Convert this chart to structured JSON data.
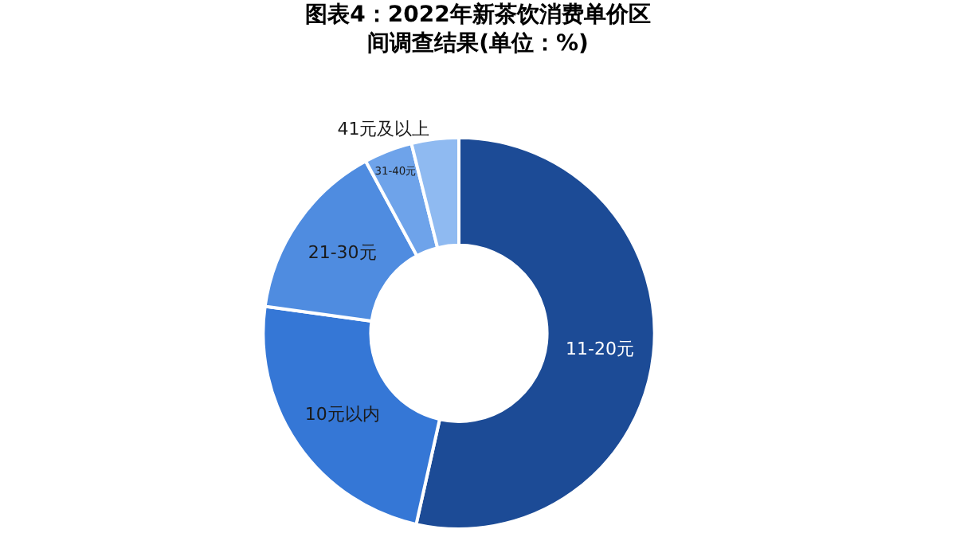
{
  "chart_data": {
    "type": "donut",
    "title": "图表4：2022年新茶饮消费单价区间调查结果(单位：%)",
    "categories": [
      "11-20元",
      "10元以内",
      "21-30元",
      "31-40元",
      "41元及以上"
    ],
    "values": [
      53.5,
      23.7,
      14.9,
      4.0,
      3.9
    ],
    "colors": [
      "#1c4b96",
      "#3577d6",
      "#4f8ce0",
      "#6ea3ea",
      "#8fbaf1"
    ],
    "legend": false
  }
}
